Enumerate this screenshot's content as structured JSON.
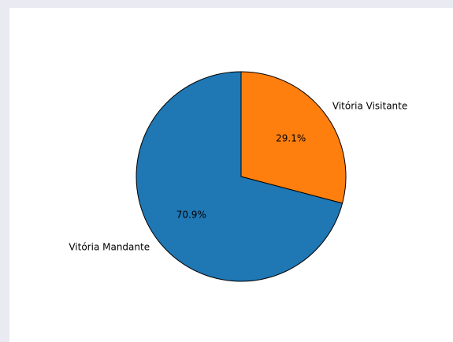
{
  "chart_data": {
    "type": "pie",
    "title": "",
    "slices": [
      {
        "label": "Vitória Mandante",
        "value": 70.9,
        "pct_label": "70.9%",
        "color": "#1f77b4"
      },
      {
        "label": "Vitória Visitante",
        "value": 29.1,
        "pct_label": "29.1%",
        "color": "#ff7f0e"
      }
    ],
    "start_angle": "90 degrees (top)",
    "direction": "counterclockwise",
    "edge_color": "#000000"
  }
}
